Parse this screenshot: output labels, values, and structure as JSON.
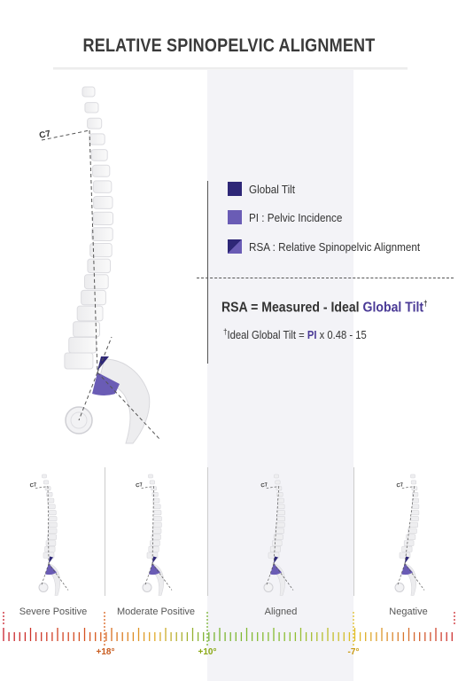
{
  "title": "RELATIVE SPINOPELVIC ALIGNMENT",
  "c7_label": "C7",
  "legend": [
    {
      "label": "Global Tilt",
      "color": "#2e2777"
    },
    {
      "label": "PI : Pelvic Incidence",
      "color": "#6a5cb5"
    },
    {
      "label": "RSA : Relative Spinopelvic Alignment",
      "color_a": "#2e2777",
      "color_b": "#6a5cb5"
    }
  ],
  "formula": {
    "prefix": "RSA = Measured - Ideal ",
    "accent": "Global Tilt",
    "sup": "†"
  },
  "note": {
    "sup": "†",
    "prefix": "Ideal Global Tilt = ",
    "accent": "PI",
    "suffix": " x 0.48 - 15"
  },
  "categories": [
    "Severe Positive",
    "Moderate Positive",
    "Aligned",
    "Negative"
  ],
  "thresholds": [
    "+18°",
    "+10°",
    "-7°"
  ],
  "colors": {
    "accent_dark": "#2e2777",
    "accent_light": "#6a5cb5",
    "band": "#f3f3f7"
  }
}
